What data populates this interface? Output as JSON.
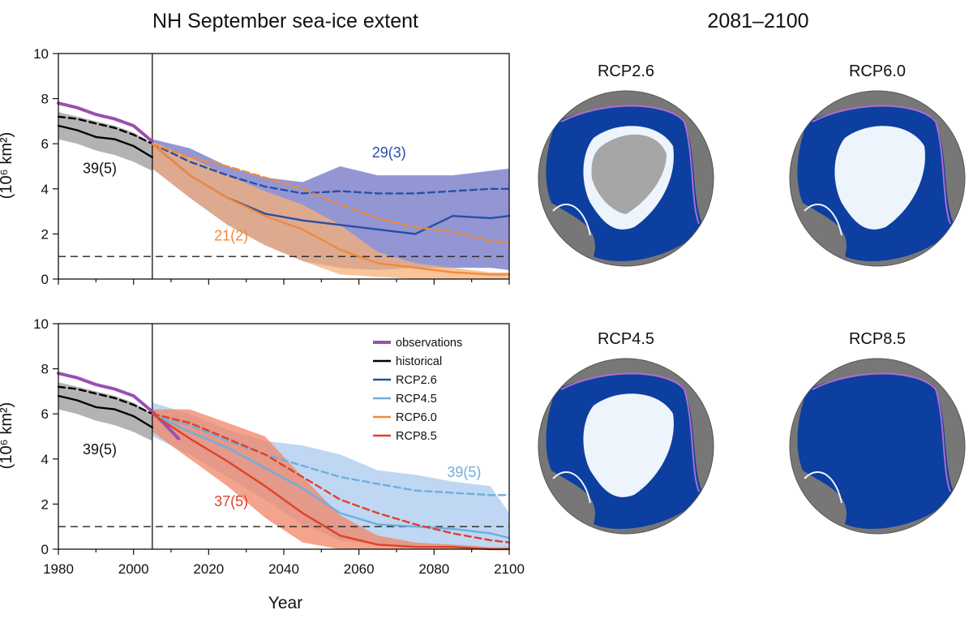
{
  "figure": {
    "left_title": "NH September sea-ice extent",
    "right_title": "2081–2100",
    "ylabel": "(10⁶ km²)",
    "xlabel": "Year"
  },
  "colors": {
    "observations": "#9b4fb0",
    "historical": "#000000",
    "historical_band": "#9a9a9a",
    "rcp26": "#2a4fa3",
    "rcp26_band": "#6f73c4",
    "rcp45": "#6eaee0",
    "rcp45_band": "#a9c9ee",
    "rcp60": "#ef8a3c",
    "rcp60_band": "#f6b078",
    "rcp85": "#e0412a",
    "rcp85_band": "#f08466",
    "map_ocean": "#0c3fa0",
    "map_land": "#777777",
    "map_ice_model": "#eef4fb",
    "map_ice_obs": "#a6a6a6"
  },
  "chart_data": [
    {
      "type": "line",
      "panel": "top",
      "xlim": [
        1980,
        2100
      ],
      "ylim": [
        0,
        10
      ],
      "xticks": [
        1980,
        2000,
        2020,
        2040,
        2060,
        2080,
        2100
      ],
      "yticks": [
        0,
        2,
        4,
        6,
        8,
        10
      ],
      "reference_line_y": 1,
      "divider_x": 2005,
      "series": [
        {
          "key": "observations",
          "style": "solid",
          "x": [
            1980,
            1985,
            1990,
            1995,
            2000,
            2005
          ],
          "y": [
            7.8,
            7.6,
            7.3,
            7.1,
            6.8,
            6.1
          ]
        },
        {
          "key": "historical",
          "style": "dashed",
          "x": [
            1980,
            1985,
            1990,
            1995,
            2000,
            2005
          ],
          "y": [
            7.2,
            7.1,
            6.9,
            6.7,
            6.4,
            6.0
          ]
        },
        {
          "key": "historical",
          "style": "solid",
          "x": [
            1980,
            1985,
            1990,
            1995,
            2000,
            2005
          ],
          "y": [
            6.8,
            6.6,
            6.3,
            6.2,
            5.9,
            5.4
          ]
        },
        {
          "key": "rcp26",
          "style": "dashed",
          "x": [
            2005,
            2015,
            2025,
            2035,
            2045,
            2055,
            2065,
            2075,
            2085,
            2095,
            2100
          ],
          "y": [
            6.0,
            5.2,
            4.6,
            4.1,
            3.8,
            3.9,
            3.8,
            3.8,
            3.9,
            4.0,
            4.0
          ]
        },
        {
          "key": "rcp26",
          "style": "solid",
          "x": [
            2005,
            2015,
            2025,
            2035,
            2045,
            2055,
            2065,
            2075,
            2085,
            2095,
            2100
          ],
          "y": [
            6.0,
            4.6,
            3.6,
            2.9,
            2.6,
            2.4,
            2.2,
            2.0,
            2.8,
            2.7,
            2.8
          ]
        },
        {
          "key": "rcp60",
          "style": "dashed",
          "x": [
            2005,
            2015,
            2025,
            2035,
            2045,
            2055,
            2065,
            2075,
            2085,
            2095,
            2100
          ],
          "y": [
            6.0,
            5.4,
            5.0,
            4.5,
            4.0,
            3.3,
            2.7,
            2.3,
            2.1,
            1.7,
            1.6
          ]
        },
        {
          "key": "rcp60",
          "style": "solid",
          "x": [
            2005,
            2015,
            2025,
            2035,
            2045,
            2055,
            2065,
            2075,
            2085,
            2095,
            2100
          ],
          "y": [
            6.0,
            4.6,
            3.6,
            2.8,
            2.2,
            1.3,
            0.7,
            0.5,
            0.3,
            0.2,
            0.2
          ]
        }
      ],
      "bands": [
        {
          "key": "historical_band",
          "x": [
            1980,
            1985,
            1990,
            1995,
            2000,
            2005
          ],
          "low": [
            6.2,
            6.0,
            5.7,
            5.5,
            5.2,
            4.8
          ],
          "high": [
            7.4,
            7.2,
            7.0,
            6.8,
            6.5,
            6.0
          ]
        },
        {
          "key": "rcp26_band",
          "x": [
            2005,
            2015,
            2025,
            2035,
            2045,
            2055,
            2065,
            2075,
            2085,
            2095,
            2100
          ],
          "low": [
            4.9,
            3.6,
            2.4,
            1.5,
            0.8,
            0.5,
            0.4,
            0.5,
            0.5,
            0.5,
            0.4
          ],
          "high": [
            6.2,
            5.8,
            5.0,
            4.5,
            4.3,
            5.0,
            4.6,
            4.6,
            4.6,
            4.8,
            4.9
          ]
        },
        {
          "key": "rcp60_band",
          "x": [
            2005,
            2015,
            2025,
            2035,
            2045,
            2055,
            2065,
            2075,
            2085,
            2095,
            2100
          ],
          "low": [
            4.9,
            3.6,
            2.4,
            1.5,
            0.8,
            0.2,
            0.1,
            0.0,
            0.0,
            0.0,
            0.0
          ],
          "high": [
            6.1,
            5.4,
            4.6,
            3.9,
            3.3,
            2.4,
            1.2,
            0.7,
            0.5,
            0.3,
            0.3
          ]
        }
      ],
      "annotations": [
        {
          "text": "39(5)",
          "x": 1991,
          "y": 4.7,
          "key": "historical"
        },
        {
          "text": "29(3)",
          "x": 2068,
          "y": 5.4,
          "key": "rcp26"
        },
        {
          "text": "21(2)",
          "x": 2026,
          "y": 1.7,
          "key": "rcp60"
        }
      ]
    },
    {
      "type": "line",
      "panel": "bottom",
      "xlim": [
        1980,
        2100
      ],
      "ylim": [
        0,
        10
      ],
      "xticks": [
        1980,
        2000,
        2020,
        2040,
        2060,
        2080,
        2100
      ],
      "yticks": [
        0,
        2,
        4,
        6,
        8,
        10
      ],
      "reference_line_y": 1,
      "divider_x": 2005,
      "series": [
        {
          "key": "observations",
          "style": "solid",
          "x": [
            1980,
            1985,
            1990,
            1995,
            2000,
            2005,
            2008,
            2012
          ],
          "y": [
            7.8,
            7.6,
            7.3,
            7.1,
            6.8,
            6.1,
            5.6,
            4.9
          ]
        },
        {
          "key": "historical",
          "style": "dashed",
          "x": [
            1980,
            1985,
            1990,
            1995,
            2000,
            2005
          ],
          "y": [
            7.2,
            7.1,
            6.9,
            6.7,
            6.4,
            6.0
          ]
        },
        {
          "key": "historical",
          "style": "solid",
          "x": [
            1980,
            1985,
            1990,
            1995,
            2000,
            2005
          ],
          "y": [
            6.8,
            6.6,
            6.3,
            6.2,
            5.9,
            5.4
          ]
        },
        {
          "key": "rcp45",
          "style": "dashed",
          "x": [
            2005,
            2015,
            2025,
            2035,
            2045,
            2055,
            2065,
            2075,
            2085,
            2095,
            2100
          ],
          "y": [
            6.0,
            5.5,
            4.8,
            4.2,
            3.7,
            3.2,
            2.9,
            2.6,
            2.5,
            2.4,
            2.4
          ]
        },
        {
          "key": "rcp45",
          "style": "solid",
          "x": [
            2005,
            2015,
            2025,
            2035,
            2045,
            2055,
            2065,
            2075,
            2085,
            2095,
            2100
          ],
          "y": [
            6.0,
            5.2,
            4.5,
            3.6,
            2.7,
            1.6,
            1.1,
            1.0,
            0.9,
            0.7,
            0.5
          ]
        },
        {
          "key": "rcp85",
          "style": "dashed",
          "x": [
            2005,
            2015,
            2025,
            2035,
            2045,
            2055,
            2065,
            2075,
            2085,
            2095,
            2100
          ],
          "y": [
            6.0,
            5.6,
            4.9,
            4.2,
            3.2,
            2.2,
            1.6,
            1.1,
            0.7,
            0.4,
            0.3
          ]
        },
        {
          "key": "rcp85",
          "style": "solid",
          "x": [
            2005,
            2015,
            2025,
            2035,
            2045,
            2055,
            2065,
            2075,
            2085,
            2095,
            2100
          ],
          "y": [
            6.0,
            4.9,
            3.9,
            2.8,
            1.6,
            0.6,
            0.2,
            0.1,
            0.1,
            0.0,
            0.0
          ]
        }
      ],
      "bands": [
        {
          "key": "historical_band",
          "x": [
            1980,
            1985,
            1990,
            1995,
            2000,
            2005
          ],
          "low": [
            6.2,
            6.0,
            5.7,
            5.5,
            5.2,
            4.8
          ],
          "high": [
            7.4,
            7.2,
            7.0,
            6.8,
            6.5,
            6.0
          ]
        },
        {
          "key": "rcp45_band",
          "x": [
            2005,
            2015,
            2025,
            2035,
            2045,
            2055,
            2065,
            2075,
            2085,
            2095,
            2100
          ],
          "low": [
            5.0,
            4.2,
            3.2,
            2.2,
            1.1,
            0.4,
            0.2,
            0.1,
            0.1,
            0.1,
            0.1
          ],
          "high": [
            6.5,
            6.0,
            5.3,
            4.8,
            4.6,
            4.2,
            3.5,
            3.3,
            3.0,
            2.8,
            1.6
          ]
        },
        {
          "key": "rcp85_band",
          "x": [
            2005,
            2015,
            2025,
            2035,
            2045,
            2055,
            2065,
            2075,
            2085,
            2095,
            2100
          ],
          "low": [
            5.2,
            4.0,
            2.8,
            1.4,
            0.3,
            0.0,
            0.0,
            0.0,
            0.0,
            0.0,
            0.0
          ],
          "high": [
            6.2,
            6.2,
            5.6,
            5.0,
            3.2,
            1.5,
            0.6,
            0.3,
            0.2,
            0.1,
            0.1
          ]
        }
      ],
      "annotations": [
        {
          "text": "39(5)",
          "x": 1991,
          "y": 4.2,
          "key": "historical"
        },
        {
          "text": "39(5)",
          "x": 2088,
          "y": 3.2,
          "key": "rcp45"
        },
        {
          "text": "37(5)",
          "x": 2026,
          "y": 1.9,
          "key": "rcp85"
        }
      ],
      "legend": {
        "placement": "top-right",
        "entries": [
          {
            "label": "observations",
            "key": "observations"
          },
          {
            "label": "historical",
            "key": "historical"
          },
          {
            "label": "RCP2.6",
            "key": "rcp26"
          },
          {
            "label": "RCP4.5",
            "key": "rcp45"
          },
          {
            "label": "RCP6.0",
            "key": "rcp60"
          },
          {
            "label": "RCP8.5",
            "key": "rcp85"
          }
        ]
      }
    }
  ],
  "maps": [
    {
      "label": "RCP2.6",
      "ice": "medium",
      "obs_ice": true
    },
    {
      "label": "RCP6.0",
      "ice": "medium",
      "obs_ice": false
    },
    {
      "label": "RCP4.5",
      "ice": "medium",
      "obs_ice": false
    },
    {
      "label": "RCP8.5",
      "ice": "none",
      "obs_ice": false
    }
  ]
}
